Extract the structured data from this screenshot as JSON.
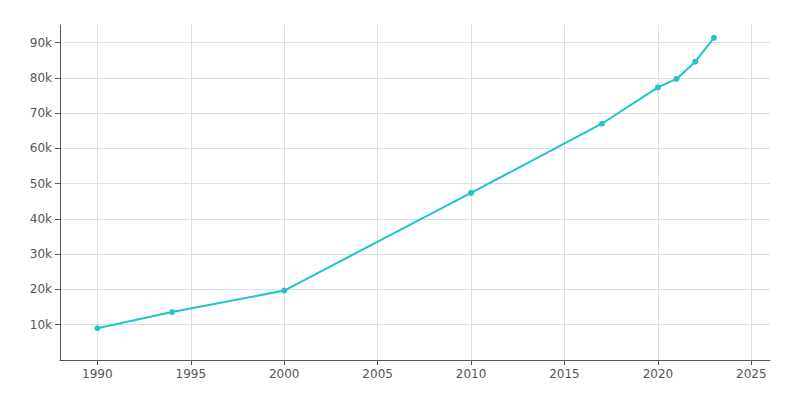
{
  "chart_data": {
    "type": "line",
    "x": [
      1990,
      1994,
      2000,
      2010,
      2017,
      2020,
      2021,
      2022,
      2023
    ],
    "values": [
      8999,
      13589,
      19687,
      47407,
      67000,
      77300,
      79700,
      84600,
      91369
    ],
    "color": "#22c4c4",
    "marker": "circle",
    "xlim": [
      1988,
      2026
    ],
    "xticks": [
      1990,
      1995,
      2000,
      2005,
      2010,
      2015,
      2020,
      2025
    ],
    "ylim": [
      0,
      95000
    ],
    "yticks": [
      {
        "value": 10000,
        "label": "10k"
      },
      {
        "value": 20000,
        "label": "20k"
      },
      {
        "value": 30000,
        "label": "30k"
      },
      {
        "value": 40000,
        "label": "40k"
      },
      {
        "value": 50000,
        "label": "50k"
      },
      {
        "value": 60000,
        "label": "60k"
      },
      {
        "value": 70000,
        "label": "70k"
      },
      {
        "value": 80000,
        "label": "80k"
      },
      {
        "value": 90000,
        "label": "90k"
      }
    ],
    "grid": true
  }
}
